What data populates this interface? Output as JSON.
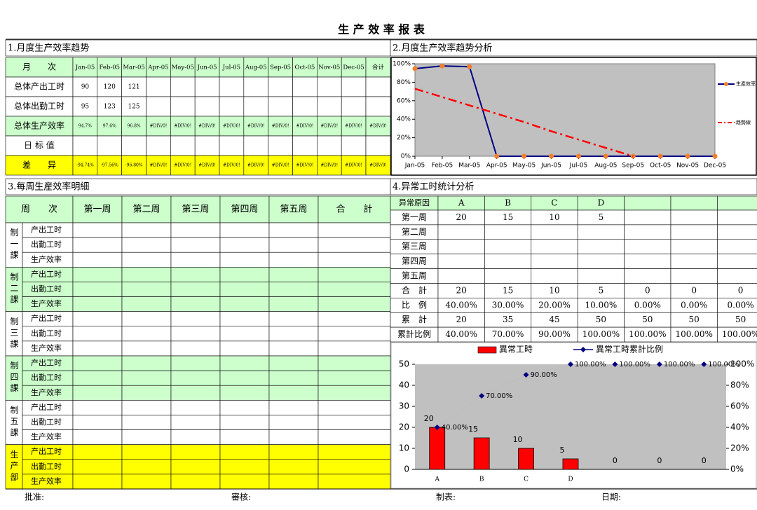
{
  "title": "生 产 效 率 报 表",
  "section1": {
    "heading": "1.月度生产效率趋势",
    "header": [
      "月　　次",
      "Jan-05",
      "Feb-05",
      "Mar-05",
      "Apr-05",
      "May-05",
      "Jun-05",
      "Jul-05",
      "Aug-05",
      "Sep-05",
      "Oct-05",
      "Nov-05",
      "Dec-05",
      "合计"
    ],
    "rows": [
      {
        "label": "总体产出工时",
        "values": [
          90,
          120,
          121
        ]
      },
      {
        "label": "总体出勤工时",
        "values": [
          95,
          123,
          125
        ]
      },
      {
        "label": "总体生产效率",
        "values": [
          "94.7%",
          "97.6%",
          "96.8%",
          "#DIV/0!",
          "#DIV/0!",
          "#DIV/0!",
          "#DIV/0!",
          "#DIV/0!",
          "#DIV/0!",
          "#DIV/0!",
          "#DIV/0!",
          "#DIV/0!",
          "#DIV/0!"
        ]
      },
      {
        "label": "日 标 值"
      },
      {
        "label": "差　　异",
        "values": [
          "-94.74%",
          "-97.56%",
          "-96.80%",
          "#DIV/0!",
          "#DIV/0!",
          "#DIV/0!",
          "#DIV/0!",
          "#DIV/0!",
          "#DIV/0!",
          "#DIV/0!",
          "#DIV/0!",
          "#DIV/0!",
          "#DIV/0!"
        ]
      }
    ]
  },
  "section2": {
    "heading": "2.月度生产效率趋势分析"
  },
  "section3": {
    "heading": "3.每周生産效率明細",
    "header": [
      "周　　次",
      "第一周",
      "第二周",
      "第三周",
      "第四周",
      "第五周",
      "合　　計"
    ],
    "groups": [
      {
        "label": "制一課",
        "rows": [
          "产出工时",
          "出勤工时",
          "生产效率"
        ]
      },
      {
        "label": "制二課",
        "rows": [
          "产出工时",
          "出勤工时",
          "生产效率"
        ]
      },
      {
        "label": "制三課",
        "rows": [
          "产出工时",
          "出勤工时",
          "生产效率"
        ]
      },
      {
        "label": "制四課",
        "rows": [
          "产出工时",
          "出勤工时",
          "生产效率"
        ]
      },
      {
        "label": "制五課",
        "rows": [
          "产出工时",
          "出勤工时",
          "生产效率"
        ]
      },
      {
        "label": "生产部",
        "rows": [
          "产出工时",
          "出勤工时",
          "生产效率"
        ]
      }
    ]
  },
  "section4": {
    "heading": "4.异常工时统计分析",
    "header": [
      "异常原因",
      "A",
      "B",
      "C",
      "D"
    ],
    "rows": [
      {
        "label": "第一周",
        "values": [
          20,
          15,
          10,
          5
        ]
      },
      {
        "label": "第二周"
      },
      {
        "label": "第三周"
      },
      {
        "label": "第四周"
      },
      {
        "label": "第五周"
      },
      {
        "label": "合　計",
        "values": [
          20,
          15,
          10,
          5,
          0,
          0,
          0
        ]
      },
      {
        "label": "比　例",
        "values": [
          "40.00%",
          "30.00%",
          "20.00%",
          "10.00%",
          "0.00%",
          "0.00%",
          "0.00%"
        ]
      },
      {
        "label": "累　計",
        "values": [
          20,
          35,
          45,
          50,
          50,
          50,
          50
        ]
      },
      {
        "label": "累計比例",
        "values": [
          "40.00%",
          "70.00%",
          "90.00%",
          "100.00%",
          "100.00%",
          "100.00%",
          "100.00%"
        ]
      }
    ]
  },
  "chart_data": [
    {
      "type": "line",
      "categories": [
        "Jan-05",
        "Feb-05",
        "Mar-05",
        "Apr-05",
        "May-05",
        "Jun-05",
        "Jul-05",
        "Aug-05",
        "Sep-05",
        "Oct-05",
        "Nov-05",
        "Dec-05"
      ],
      "series": [
        {
          "name": "生產效率",
          "color": "#000080",
          "marker_color": "#f08030",
          "values": [
            94.7,
            97.6,
            96.8,
            0,
            0,
            0,
            0,
            0,
            0,
            0,
            0,
            0
          ]
        },
        {
          "name": "趋勢線",
          "color": "#ff0000",
          "values": [
            73,
            64,
            55,
            46,
            37,
            27,
            18,
            9,
            0,
            null,
            null,
            null
          ]
        }
      ],
      "ylim": [
        0,
        100
      ],
      "yticks": [
        {
          "value": 0,
          "label": "0%"
        },
        {
          "value": 20,
          "label": "20%"
        },
        {
          "value": 40,
          "label": "40%"
        },
        {
          "value": 60,
          "label": "60%"
        },
        {
          "value": 80,
          "label": "80%"
        },
        {
          "value": 100,
          "label": "100%"
        }
      ],
      "grid": false,
      "legend": "right"
    },
    {
      "type": "bar",
      "categories": [
        "A",
        "B",
        "C",
        "D",
        null,
        null,
        null
      ],
      "series": [
        {
          "name": "異常工時",
          "type": "bar",
          "color": "#ff0000",
          "values": [
            20,
            15,
            10,
            5,
            0,
            0,
            0
          ]
        },
        {
          "name": "異常工時累計比例",
          "type": "line",
          "axis": "y2",
          "color": "#000080",
          "values": [
            40,
            70,
            90,
            100,
            100,
            100,
            100
          ],
          "value_labels": [
            "40.00%",
            "70.00%",
            "90.00%",
            "100.00%",
            "100.00%",
            "100.00%",
            "100.00%"
          ]
        }
      ],
      "ylim": [
        0,
        50
      ],
      "yticks": [
        0,
        10,
        20,
        30,
        40,
        50
      ],
      "y2lim": [
        0,
        100
      ],
      "y2ticks": [
        {
          "value": 0,
          "label": "0%"
        },
        {
          "value": 20,
          "label": "20%"
        },
        {
          "value": 40,
          "label": "40%"
        },
        {
          "value": 60,
          "label": "60%"
        },
        {
          "value": 80,
          "label": "80%"
        },
        {
          "value": 100,
          "label": "100%"
        }
      ],
      "grid": false,
      "legend": "top"
    }
  ],
  "footer": [
    "批准:",
    "審核:",
    "制表:",
    "日期:"
  ]
}
